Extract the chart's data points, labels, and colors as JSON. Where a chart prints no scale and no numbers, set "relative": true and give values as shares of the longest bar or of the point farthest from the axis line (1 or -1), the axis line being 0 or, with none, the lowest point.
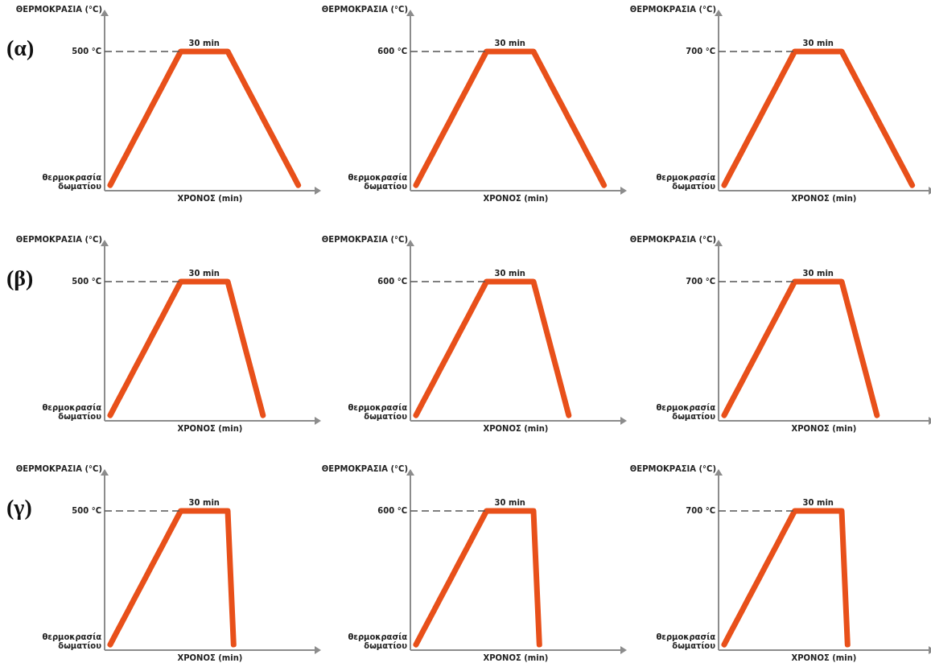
{
  "chart_data": [
    {
      "type": "line",
      "relative": true,
      "title": "(α)",
      "xlabel": "ΧΡΟΝΟΣ (min)",
      "ylabel": "ΘΕΡΜΟΚΡΑΣΙΑ (°C)",
      "categories": [
        null,
        null,
        null,
        null,
        null,
        null,
        null,
        null,
        null,
        null,
        null,
        null,
        null,
        null,
        null,
        null,
        null,
        null,
        null,
        null,
        null,
        null,
        null,
        null,
        null,
        null,
        null,
        null,
        null,
        null,
        null,
        null,
        null
      ],
      "series": [
        {
          "color": "#e8501a",
          "values": [
            0.04,
            0.12,
            0.2,
            0.28,
            0.36,
            0.44,
            0.52,
            0.6,
            0.68,
            0.76,
            0.84,
            0.92,
            1,
            1,
            1,
            1,
            1,
            1,
            1,
            1,
            1,
            0.92,
            0.84,
            0.76,
            0.68,
            0.6,
            0.52,
            0.44,
            0.36,
            0.28,
            0.2,
            0.12,
            0.04
          ]
        }
      ],
      "ref_lines": [
        {
          "axis": "y",
          "value": 1,
          "label": "500 °C",
          "color": "#555555",
          "line_style": "dashed"
        }
      ],
      "annotations": [
        {
          "text": "30 min",
          "y": 1
        },
        "θερμοκρασία δωματίου"
      ]
    },
    {
      "type": "line",
      "relative": true,
      "xlabel": "ΧΡΟΝΟΣ (min)",
      "ylabel": "ΘΕΡΜΟΚΡΑΣΙΑ (°C)",
      "categories": [
        null,
        null,
        null,
        null,
        null,
        null,
        null,
        null,
        null,
        null,
        null,
        null,
        null,
        null,
        null,
        null,
        null,
        null,
        null,
        null,
        null,
        null,
        null,
        null,
        null,
        null,
        null,
        null,
        null,
        null,
        null,
        null,
        null
      ],
      "series": [
        {
          "color": "#e8501a",
          "values": [
            0.04,
            0.12,
            0.2,
            0.28,
            0.36,
            0.44,
            0.52,
            0.6,
            0.68,
            0.76,
            0.84,
            0.92,
            1,
            1,
            1,
            1,
            1,
            1,
            1,
            1,
            1,
            0.92,
            0.84,
            0.76,
            0.68,
            0.6,
            0.52,
            0.44,
            0.36,
            0.28,
            0.2,
            0.12,
            0.04
          ]
        }
      ],
      "ref_lines": [
        {
          "axis": "y",
          "value": 1,
          "label": "600 °C",
          "color": "#555555",
          "line_style": "dashed"
        }
      ],
      "annotations": [
        {
          "text": "30 min",
          "y": 1
        },
        "θερμοκρασία δωματίου"
      ]
    },
    {
      "type": "line",
      "relative": true,
      "xlabel": "ΧΡΟΝΟΣ (min)",
      "ylabel": "ΘΕΡΜΟΚΡΑΣΙΑ (°C)",
      "categories": [
        null,
        null,
        null,
        null,
        null,
        null,
        null,
        null,
        null,
        null,
        null,
        null,
        null,
        null,
        null,
        null,
        null,
        null,
        null,
        null,
        null,
        null,
        null,
        null,
        null,
        null,
        null,
        null,
        null,
        null,
        null,
        null,
        null
      ],
      "series": [
        {
          "color": "#e8501a",
          "values": [
            0.04,
            0.12,
            0.2,
            0.28,
            0.36,
            0.44,
            0.52,
            0.6,
            0.68,
            0.76,
            0.84,
            0.92,
            1,
            1,
            1,
            1,
            1,
            1,
            1,
            1,
            1,
            0.92,
            0.84,
            0.76,
            0.68,
            0.6,
            0.52,
            0.44,
            0.36,
            0.28,
            0.2,
            0.12,
            0.04
          ]
        }
      ],
      "ref_lines": [
        {
          "axis": "y",
          "value": 1,
          "label": "700 °C",
          "color": "#555555",
          "line_style": "dashed"
        }
      ],
      "annotations": [
        {
          "text": "30 min",
          "y": 1
        },
        "θερμοκρασία δωματίου"
      ]
    },
    {
      "type": "line",
      "relative": true,
      "title": "(β)",
      "xlabel": "ΧΡΟΝΟΣ (min)",
      "ylabel": "ΘΕΡΜΟΚΡΑΣΙΑ (°C)",
      "categories": [
        null,
        null,
        null,
        null,
        null,
        null,
        null,
        null,
        null,
        null,
        null,
        null,
        null,
        null,
        null,
        null,
        null,
        null,
        null,
        null,
        null,
        null,
        null,
        null,
        null,
        null,
        null
      ],
      "series": [
        {
          "color": "#e8501a",
          "values": [
            0.04,
            0.12,
            0.2,
            0.28,
            0.36,
            0.44,
            0.52,
            0.6,
            0.68,
            0.76,
            0.84,
            0.92,
            1,
            1,
            1,
            1,
            1,
            1,
            1,
            1,
            1,
            0.84,
            0.68,
            0.52,
            0.36,
            0.2,
            0.04
          ]
        }
      ],
      "ref_lines": [
        {
          "axis": "y",
          "value": 1,
          "label": "500 °C",
          "color": "#555555",
          "line_style": "dashed"
        }
      ],
      "annotations": [
        {
          "text": "30 min",
          "y": 1
        },
        "θερμοκρασία δωματίου"
      ]
    },
    {
      "type": "line",
      "relative": true,
      "xlabel": "ΧΡΟΝΟΣ (min)",
      "ylabel": "ΘΕΡΜΟΚΡΑΣΙΑ (°C)",
      "categories": [
        null,
        null,
        null,
        null,
        null,
        null,
        null,
        null,
        null,
        null,
        null,
        null,
        null,
        null,
        null,
        null,
        null,
        null,
        null,
        null,
        null,
        null,
        null,
        null,
        null,
        null,
        null
      ],
      "series": [
        {
          "color": "#e8501a",
          "values": [
            0.04,
            0.12,
            0.2,
            0.28,
            0.36,
            0.44,
            0.52,
            0.6,
            0.68,
            0.76,
            0.84,
            0.92,
            1,
            1,
            1,
            1,
            1,
            1,
            1,
            1,
            1,
            0.84,
            0.68,
            0.52,
            0.36,
            0.2,
            0.04
          ]
        }
      ],
      "ref_lines": [
        {
          "axis": "y",
          "value": 1,
          "label": "600 °C",
          "color": "#555555",
          "line_style": "dashed"
        }
      ],
      "annotations": [
        {
          "text": "30 min",
          "y": 1
        },
        "θερμοκρασία δωματίου"
      ]
    },
    {
      "type": "line",
      "relative": true,
      "xlabel": "ΧΡΟΝΟΣ (min)",
      "ylabel": "ΘΕΡΜΟΚΡΑΣΙΑ (°C)",
      "categories": [
        null,
        null,
        null,
        null,
        null,
        null,
        null,
        null,
        null,
        null,
        null,
        null,
        null,
        null,
        null,
        null,
        null,
        null,
        null,
        null,
        null,
        null,
        null,
        null,
        null,
        null,
        null
      ],
      "series": [
        {
          "color": "#e8501a",
          "values": [
            0.04,
            0.12,
            0.2,
            0.28,
            0.36,
            0.44,
            0.52,
            0.6,
            0.68,
            0.76,
            0.84,
            0.92,
            1,
            1,
            1,
            1,
            1,
            1,
            1,
            1,
            1,
            0.84,
            0.68,
            0.52,
            0.36,
            0.2,
            0.04
          ]
        }
      ],
      "ref_lines": [
        {
          "axis": "y",
          "value": 1,
          "label": "700 °C",
          "color": "#555555",
          "line_style": "dashed"
        }
      ],
      "annotations": [
        {
          "text": "30 min",
          "y": 1
        },
        "θερμοκρασία δωματίου"
      ]
    },
    {
      "type": "line",
      "relative": true,
      "title": "(γ)",
      "xlabel": "ΧΡΟΝΟΣ (min)",
      "ylabel": "ΘΕΡΜΟΚΡΑΣΙΑ (°C)",
      "categories": [
        null,
        null,
        null,
        null,
        null,
        null,
        null,
        null,
        null,
        null,
        null,
        null,
        null,
        null,
        null,
        null,
        null,
        null,
        null,
        null,
        null,
        null
      ],
      "series": [
        {
          "color": "#e8501a",
          "values": [
            0.04,
            0.12,
            0.2,
            0.28,
            0.36,
            0.44,
            0.52,
            0.6,
            0.68,
            0.76,
            0.84,
            0.92,
            1,
            1,
            1,
            1,
            1,
            1,
            1,
            1,
            1,
            0.04
          ]
        }
      ],
      "ref_lines": [
        {
          "axis": "y",
          "value": 1,
          "label": "500 °C",
          "color": "#555555",
          "line_style": "dashed"
        }
      ],
      "annotations": [
        {
          "text": "30 min",
          "y": 1
        },
        "θερμοκρασία δωματίου"
      ]
    },
    {
      "type": "line",
      "relative": true,
      "xlabel": "ΧΡΟΝΟΣ (min)",
      "ylabel": "ΘΕΡΜΟΚΡΑΣΙΑ (°C)",
      "categories": [
        null,
        null,
        null,
        null,
        null,
        null,
        null,
        null,
        null,
        null,
        null,
        null,
        null,
        null,
        null,
        null,
        null,
        null,
        null,
        null,
        null,
        null
      ],
      "series": [
        {
          "color": "#e8501a",
          "values": [
            0.04,
            0.12,
            0.2,
            0.28,
            0.36,
            0.44,
            0.52,
            0.6,
            0.68,
            0.76,
            0.84,
            0.92,
            1,
            1,
            1,
            1,
            1,
            1,
            1,
            1,
            1,
            0.04
          ]
        }
      ],
      "ref_lines": [
        {
          "axis": "y",
          "value": 1,
          "label": "600 °C",
          "color": "#555555",
          "line_style": "dashed"
        }
      ],
      "annotations": [
        {
          "text": "30 min",
          "y": 1
        },
        "θερμοκρασία δωματίου"
      ]
    },
    {
      "type": "line",
      "relative": true,
      "xlabel": "ΧΡΟΝΟΣ (min)",
      "ylabel": "ΘΕΡΜΟΚΡΑΣΙΑ (°C)",
      "categories": [
        null,
        null,
        null,
        null,
        null,
        null,
        null,
        null,
        null,
        null,
        null,
        null,
        null,
        null,
        null,
        null,
        null,
        null,
        null,
        null,
        null,
        null
      ],
      "series": [
        {
          "color": "#e8501a",
          "values": [
            0.04,
            0.12,
            0.2,
            0.28,
            0.36,
            0.44,
            0.52,
            0.6,
            0.68,
            0.76,
            0.84,
            0.92,
            1,
            1,
            1,
            1,
            1,
            1,
            1,
            1,
            1,
            0.04
          ]
        }
      ],
      "ref_lines": [
        {
          "axis": "y",
          "value": 1,
          "label": "700 °C",
          "color": "#555555",
          "line_style": "dashed"
        }
      ],
      "annotations": [
        {
          "text": "30 min",
          "y": 1
        },
        "θερμοκρασία δωματίου"
      ]
    }
  ]
}
